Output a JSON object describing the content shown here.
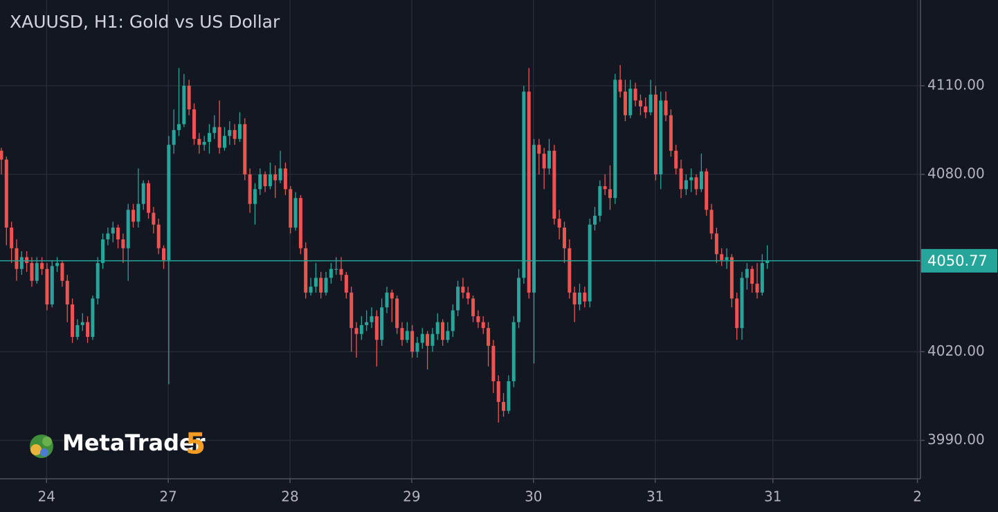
{
  "chart_data": {
    "type": "candlestick",
    "title": "XAUUSD, H1: Gold vs US Dollar",
    "watermark": {
      "name": "MetaTrader",
      "version": "5"
    },
    "up_color": "#26a69a",
    "down_color": "#ef5350",
    "grid": true,
    "ylim": [
      3977,
      4139
    ],
    "yticks": [
      {
        "value": 3990,
        "label": "3990.00"
      },
      {
        "value": 4020,
        "label": "4020.00"
      },
      {
        "value": 4080,
        "label": "4080.00"
      },
      {
        "value": 4110,
        "label": "4110.00"
      }
    ],
    "xlim": [
      -0.27,
      181.2
    ],
    "xticks": [
      {
        "value": 8.9,
        "label": "24"
      },
      {
        "value": 32.9,
        "label": "27"
      },
      {
        "value": 56.9,
        "label": "28"
      },
      {
        "value": 80.9,
        "label": "29"
      },
      {
        "value": 104.9,
        "label": "30"
      },
      {
        "value": 128.9,
        "label": "31"
      },
      {
        "value": 152.1,
        "label": "31"
      },
      {
        "value": 180.6,
        "label": "2"
      }
    ],
    "last_price": 4050.77,
    "ohlc": [
      [
        4088,
        4089,
        4080,
        4085
      ],
      [
        4085,
        4086,
        4056,
        4062
      ],
      [
        4062,
        4064,
        4050,
        4055
      ],
      [
        4055,
        4058,
        4044,
        4048
      ],
      [
        4048,
        4054,
        4046,
        4052
      ],
      [
        4052,
        4054,
        4047,
        4050
      ],
      [
        4050,
        4052,
        4042,
        4044
      ],
      [
        4044,
        4052,
        4043,
        4050
      ],
      [
        4050,
        4052,
        4046,
        4048
      ],
      [
        4048,
        4050,
        4034,
        4036
      ],
      [
        4036,
        4051,
        4035,
        4049
      ],
      [
        4049,
        4052,
        4047,
        4050
      ],
      [
        4050,
        4051,
        4042,
        4044
      ],
      [
        4044,
        4046,
        4030,
        4036
      ],
      [
        4036,
        4038,
        4023,
        4025
      ],
      [
        4025,
        4031,
        4024,
        4029
      ],
      [
        4029,
        4033,
        4027,
        4030
      ],
      [
        4030,
        4032,
        4023,
        4025
      ],
      [
        4025,
        4039,
        4024,
        4038
      ],
      [
        4038,
        4052,
        4036,
        4050
      ],
      [
        4050,
        4060,
        4048,
        4058
      ],
      [
        4058,
        4062,
        4056,
        4060
      ],
      [
        4060,
        4064,
        4057,
        4062
      ],
      [
        4062,
        4063,
        4055,
        4058
      ],
      [
        4058,
        4060,
        4050,
        4055
      ],
      [
        4055,
        4070,
        4044,
        4068
      ],
      [
        4068,
        4070,
        4062,
        4064
      ],
      [
        4064,
        4082,
        4062,
        4070
      ],
      [
        4070,
        4078,
        4068,
        4077
      ],
      [
        4077,
        4078,
        4065,
        4067
      ],
      [
        4067,
        4069,
        4060,
        4063
      ],
      [
        4063,
        4065,
        4053,
        4055
      ],
      [
        4055,
        4056,
        4048,
        4051
      ],
      [
        4051,
        4093,
        4009,
        4090
      ],
      [
        4090,
        4102,
        4087,
        4095
      ],
      [
        4095,
        4116,
        4093,
        4097
      ],
      [
        4097,
        4114,
        4096,
        4110
      ],
      [
        4110,
        4112,
        4100,
        4102
      ],
      [
        4102,
        4104,
        4090,
        4092
      ],
      [
        4092,
        4094,
        4087,
        4090
      ],
      [
        4090,
        4093,
        4088,
        4091
      ],
      [
        4091,
        4097,
        4087,
        4094
      ],
      [
        4094,
        4100,
        4092,
        4096
      ],
      [
        4096,
        4105,
        4087,
        4089
      ],
      [
        4089,
        4096,
        4088,
        4093
      ],
      [
        4093,
        4098,
        4090,
        4095
      ],
      [
        4095,
        4097,
        4090,
        4092
      ],
      [
        4092,
        4101,
        4091,
        4097
      ],
      [
        4097,
        4099,
        4078,
        4080
      ],
      [
        4080,
        4082,
        4067,
        4070
      ],
      [
        4070,
        4077,
        4063,
        4075
      ],
      [
        4075,
        4082,
        4073,
        4080
      ],
      [
        4080,
        4081,
        4074,
        4076
      ],
      [
        4076,
        4084,
        4075,
        4080
      ],
      [
        4080,
        4083,
        4072,
        4078
      ],
      [
        4078,
        4088,
        4077,
        4082
      ],
      [
        4082,
        4084,
        4073,
        4075
      ],
      [
        4075,
        4076,
        4060,
        4062
      ],
      [
        4062,
        4074,
        4061,
        4072
      ],
      [
        4072,
        4073,
        4053,
        4055
      ],
      [
        4055,
        4057,
        4038,
        4040
      ],
      [
        4040,
        4045,
        4039,
        4042
      ],
      [
        4042,
        4050,
        4040,
        4045
      ],
      [
        4045,
        4047,
        4038,
        4040
      ],
      [
        4040,
        4047,
        4039,
        4045
      ],
      [
        4045,
        4050,
        4043,
        4048
      ],
      [
        4048,
        4052,
        4046,
        4048
      ],
      [
        4048,
        4052,
        4044,
        4046
      ],
      [
        4046,
        4047,
        4038,
        4040
      ],
      [
        4040,
        4042,
        4020,
        4028
      ],
      [
        4028,
        4030,
        4018,
        4026
      ],
      [
        4026,
        4032,
        4024,
        4029
      ],
      [
        4029,
        4034,
        4027,
        4030
      ],
      [
        4030,
        4035,
        4028,
        4032
      ],
      [
        4032,
        4034,
        4015,
        4024
      ],
      [
        4024,
        4038,
        4022,
        4035
      ],
      [
        4035,
        4042,
        4033,
        4040
      ],
      [
        4040,
        4041,
        4030,
        4038
      ],
      [
        4038,
        4039,
        4026,
        4028
      ],
      [
        4028,
        4030,
        4022,
        4024
      ],
      [
        4024,
        4030,
        4023,
        4027
      ],
      [
        4027,
        4029,
        4018,
        4020
      ],
      [
        4020,
        4025,
        4018,
        4023
      ],
      [
        4023,
        4028,
        4021,
        4026
      ],
      [
        4026,
        4027,
        4014,
        4022
      ],
      [
        4022,
        4028,
        4020,
        4026
      ],
      [
        4026,
        4033,
        4024,
        4030
      ],
      [
        4030,
        4031,
        4022,
        4024
      ],
      [
        4024,
        4030,
        4023,
        4027
      ],
      [
        4027,
        4036,
        4025,
        4034
      ],
      [
        4034,
        4044,
        4032,
        4042
      ],
      [
        4042,
        4045,
        4038,
        4040
      ],
      [
        4040,
        4042,
        4036,
        4038
      ],
      [
        4038,
        4039,
        4030,
        4032
      ],
      [
        4032,
        4034,
        4028,
        4030
      ],
      [
        4030,
        4032,
        4026,
        4028
      ],
      [
        4028,
        4030,
        4015,
        4022
      ],
      [
        4022,
        4024,
        4006,
        4010
      ],
      [
        4010,
        4012,
        3996,
        4003
      ],
      [
        4003,
        4006,
        3998,
        4000
      ],
      [
        4000,
        4012,
        3999,
        4010
      ],
      [
        4010,
        4032,
        4008,
        4030
      ],
      [
        4030,
        4048,
        4028,
        4045
      ],
      [
        4045,
        4110,
        4043,
        4108
      ],
      [
        4108,
        4116,
        4038,
        4040
      ],
      [
        4040,
        4092,
        4016,
        4090
      ],
      [
        4090,
        4092,
        4080,
        4087
      ],
      [
        4087,
        4089,
        4075,
        4082
      ],
      [
        4082,
        4092,
        4080,
        4088
      ],
      [
        4088,
        4090,
        4063,
        4065
      ],
      [
        4065,
        4068,
        4058,
        4062
      ],
      [
        4062,
        4064,
        4050,
        4055
      ],
      [
        4055,
        4058,
        4038,
        4040
      ],
      [
        4040,
        4042,
        4030,
        4036
      ],
      [
        4036,
        4043,
        4034,
        4040
      ],
      [
        4040,
        4042,
        4035,
        4037
      ],
      [
        4037,
        4065,
        4035,
        4063
      ],
      [
        4063,
        4069,
        4061,
        4066
      ],
      [
        4066,
        4078,
        4064,
        4076
      ],
      [
        4076,
        4080,
        4073,
        4075
      ],
      [
        4075,
        4083,
        4068,
        4072
      ],
      [
        4072,
        4114,
        4070,
        4112
      ],
      [
        4112,
        4117,
        4106,
        4108
      ],
      [
        4108,
        4112,
        4098,
        4100
      ],
      [
        4100,
        4112,
        4099,
        4109
      ],
      [
        4109,
        4111,
        4103,
        4105
      ],
      [
        4105,
        4107,
        4100,
        4103
      ],
      [
        4103,
        4106,
        4099,
        4101
      ],
      [
        4101,
        4112,
        4100,
        4107
      ],
      [
        4107,
        4110,
        4078,
        4080
      ],
      [
        4080,
        4108,
        4075,
        4105
      ],
      [
        4105,
        4108,
        4098,
        4100
      ],
      [
        4100,
        4102,
        4086,
        4088
      ],
      [
        4088,
        4090,
        4080,
        4082
      ],
      [
        4082,
        4085,
        4072,
        4075
      ],
      [
        4075,
        4080,
        4073,
        4078
      ],
      [
        4078,
        4082,
        4074,
        4079
      ],
      [
        4079,
        4080,
        4073,
        4075
      ],
      [
        4075,
        4087,
        4074,
        4081
      ],
      [
        4081,
        4082,
        4066,
        4068
      ],
      [
        4068,
        4070,
        4058,
        4060
      ],
      [
        4060,
        4062,
        4050,
        4053
      ],
      [
        4053,
        4055,
        4049,
        4051
      ],
      [
        4051,
        4055,
        4048,
        4052
      ],
      [
        4052,
        4053,
        4035,
        4038
      ],
      [
        4038,
        4040,
        4024,
        4028
      ],
      [
        4028,
        4047,
        4024,
        4045
      ],
      [
        4045,
        4050,
        4041,
        4048
      ],
      [
        4048,
        4049,
        4040,
        4043
      ],
      [
        4043,
        4050,
        4038,
        4040
      ],
      [
        4040,
        4053,
        4039,
        4050
      ],
      [
        4050,
        4056,
        4048,
        4050.77
      ]
    ]
  }
}
